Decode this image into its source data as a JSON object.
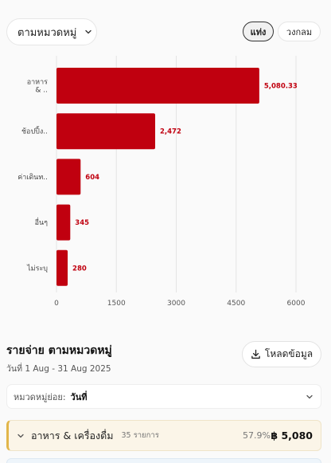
{
  "filter": {
    "category_label": "ตามหมวดหมู่"
  },
  "view_toggle": {
    "bar_label": "แท่ง",
    "pie_label": "วงกลม",
    "active": "bar"
  },
  "chart_data": {
    "type": "bar",
    "orientation": "horizontal",
    "categories": [
      "อาหาร & ..",
      "ช้อปปิ้ง..",
      "ค่าเดินท..",
      "อื่นๆ",
      "ไม่ระบุ"
    ],
    "values": [
      5080.33,
      2472,
      604,
      345,
      280
    ],
    "value_labels": [
      "5,080.33",
      "2,472",
      "604",
      "345",
      "280"
    ],
    "xlim": [
      0,
      6000
    ],
    "xticks": [
      0,
      1500,
      3000,
      4500,
      6000
    ],
    "grid": "vertical",
    "bar_color": "#c0000f",
    "label_color": "#c0000f"
  },
  "summary": {
    "title": "รายจ่าย ตามหมวดหมู่",
    "date_range": "วันที่ 1 Aug - 31 Aug 2025",
    "download_label": "โหลดข้อมูล"
  },
  "subcategory": {
    "label": "หมวดหมู่ย่อย:",
    "value": "วันที่"
  },
  "groups": [
    {
      "name": "อาหาร & เครื่องดื่ม",
      "count": "35 รายการ",
      "percent": "57.9%",
      "amount": "฿ 5,080",
      "accent": "#e2b64a"
    }
  ]
}
